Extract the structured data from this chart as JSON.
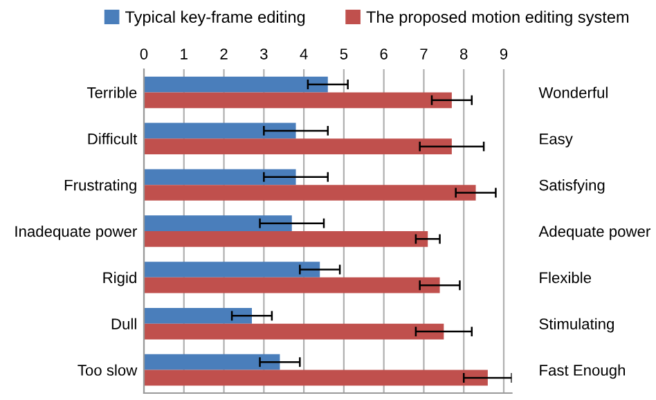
{
  "chart_data": {
    "type": "bar",
    "orientation": "horizontal",
    "categories": [
      "Terrible",
      "Difficult",
      "Frustrating",
      "Inadequate power",
      "Rigid",
      "Dull",
      "Too slow"
    ],
    "y2_categories": [
      "Wonderful",
      "Easy",
      "Satisfying",
      "Adequate power",
      "Flexible",
      "Stimulating",
      "Fast Enough"
    ],
    "series": [
      {
        "name": "Typical key-frame editing",
        "color": "#4a7ebb",
        "values": [
          4.6,
          3.8,
          3.8,
          3.7,
          4.4,
          2.7,
          3.4
        ],
        "errors": [
          0.5,
          0.8,
          0.8,
          0.8,
          0.5,
          0.5,
          0.5
        ]
      },
      {
        "name": "The proposed motion editing system",
        "color": "#c0504d",
        "values": [
          7.7,
          7.7,
          8.3,
          7.1,
          7.4,
          7.5,
          8.6
        ],
        "errors": [
          0.5,
          0.8,
          0.5,
          0.3,
          0.5,
          0.7,
          0.6
        ]
      }
    ],
    "xlim": [
      0,
      9.2
    ],
    "xticks": [
      0,
      1,
      2,
      3,
      4,
      5,
      6,
      7,
      8,
      9
    ],
    "grid": "x",
    "legend": "top"
  }
}
